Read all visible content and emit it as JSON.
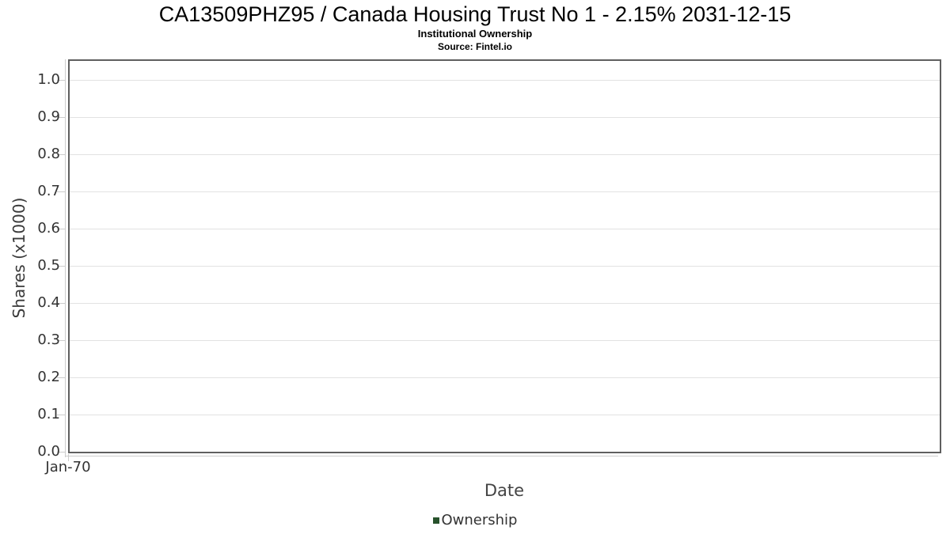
{
  "header": {
    "title": "CA13509PHZ95 / Canada Housing Trust No 1 - 2.15% 2031-12-15",
    "subtitle": "Institutional Ownership",
    "source": "Source: Fintel.io"
  },
  "chart_data": {
    "type": "bar",
    "title": "CA13509PHZ95 / Canada Housing Trust No 1 - 2.15% 2031-12-15",
    "subtitle": "Institutional Ownership",
    "source": "Source: Fintel.io",
    "xlabel": "Date",
    "ylabel": "Shares (x1000)",
    "categories": [
      "Jan-70"
    ],
    "series": [
      {
        "name": "Ownership",
        "color": "#28522c",
        "values": []
      }
    ],
    "xticks": [
      "Jan-70"
    ],
    "yticks": [
      0.0,
      0.1,
      0.2,
      0.3,
      0.4,
      0.5,
      0.6,
      0.7,
      0.8,
      0.9,
      1.0
    ],
    "ytick_labels": [
      "0.0",
      "0.1",
      "0.2",
      "0.3",
      "0.4",
      "0.5",
      "0.6",
      "0.7",
      "0.8",
      "0.9",
      "1.0"
    ],
    "ylim": [
      0,
      1.05
    ],
    "grid": "horizontal",
    "legend_position": "bottom",
    "note_no_data_plotted": true,
    "colors": {
      "ownership": "#28522c",
      "gridline": "#e2e2e2",
      "plot_border": "#5f5f5f",
      "axis_line": "#cccccc",
      "tick_text": "#333333",
      "title_text": "#000000"
    }
  },
  "legend": {
    "items": [
      {
        "label": "Ownership",
        "color": "#28522c"
      }
    ]
  }
}
